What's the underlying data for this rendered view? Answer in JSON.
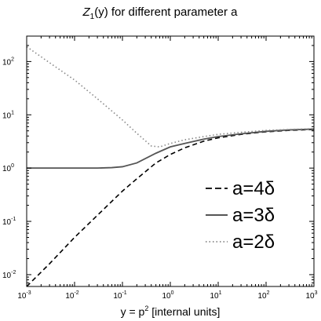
{
  "chart_data": {
    "type": "line",
    "title": {
      "symbol": "Z",
      "subscript": "1",
      "rest": "(y) for different parameter a"
    },
    "xlabel": {
      "prefix": "y = p",
      "superscript": "2",
      "suffix": " [internal units]"
    },
    "ylabel": "",
    "x_scale": "log",
    "y_scale": "log",
    "xlim": [
      0.001,
      1000
    ],
    "ylim": [
      0.006,
      300
    ],
    "x_ticks": [
      {
        "base": "10",
        "exp": "-3",
        "value": 0.001
      },
      {
        "base": "10",
        "exp": "-2",
        "value": 0.01
      },
      {
        "base": "10",
        "exp": "-1",
        "value": 0.1
      },
      {
        "base": "10",
        "exp": "0",
        "value": 1
      },
      {
        "base": "10",
        "exp": "1",
        "value": 10
      },
      {
        "base": "10",
        "exp": "2",
        "value": 100
      },
      {
        "base": "10",
        "exp": "3",
        "value": 1000
      }
    ],
    "y_ticks": [
      {
        "base": "10",
        "exp": "-2",
        "value": 0.01
      },
      {
        "base": "10",
        "exp": "-1",
        "value": 0.1
      },
      {
        "base": "10",
        "exp": "0",
        "value": 1
      },
      {
        "base": "10",
        "exp": "1",
        "value": 10
      },
      {
        "base": "10",
        "exp": "2",
        "value": 100
      }
    ],
    "grid": false,
    "legend_position": "bottom-right",
    "series": [
      {
        "name": "a=4δ",
        "style": "dashed",
        "color": "#000000",
        "x": [
          0.001,
          0.003,
          0.01,
          0.03,
          0.1,
          0.2,
          0.5,
          1,
          2,
          5,
          10,
          30,
          100,
          300,
          1000
        ],
        "y": [
          0.006,
          0.016,
          0.05,
          0.13,
          0.37,
          0.63,
          1.25,
          1.8,
          2.4,
          3.2,
          3.7,
          4.3,
          4.8,
          5.1,
          5.3
        ]
      },
      {
        "name": "a=3δ",
        "style": "solid",
        "color": "#555555",
        "x": [
          0.001,
          0.01,
          0.03,
          0.06,
          0.1,
          0.2,
          0.5,
          1,
          2,
          5,
          10,
          30,
          100,
          300,
          1000
        ],
        "y": [
          1.0,
          1.0,
          1.0,
          1.02,
          1.06,
          1.25,
          1.9,
          2.5,
          2.9,
          3.5,
          3.9,
          4.4,
          4.9,
          5.2,
          5.4
        ]
      },
      {
        "name": "a=2δ",
        "style": "dotted",
        "color": "#888888",
        "x": [
          0.001,
          0.003,
          0.01,
          0.03,
          0.1,
          0.2,
          0.4,
          0.6,
          1,
          2,
          5,
          10,
          30,
          100,
          300,
          1000
        ],
        "y": [
          190,
          95,
          45,
          20,
          8,
          4.5,
          2.6,
          2.5,
          2.9,
          3.4,
          3.9,
          4.3,
          4.7,
          5.1,
          5.3,
          5.5
        ]
      }
    ]
  }
}
